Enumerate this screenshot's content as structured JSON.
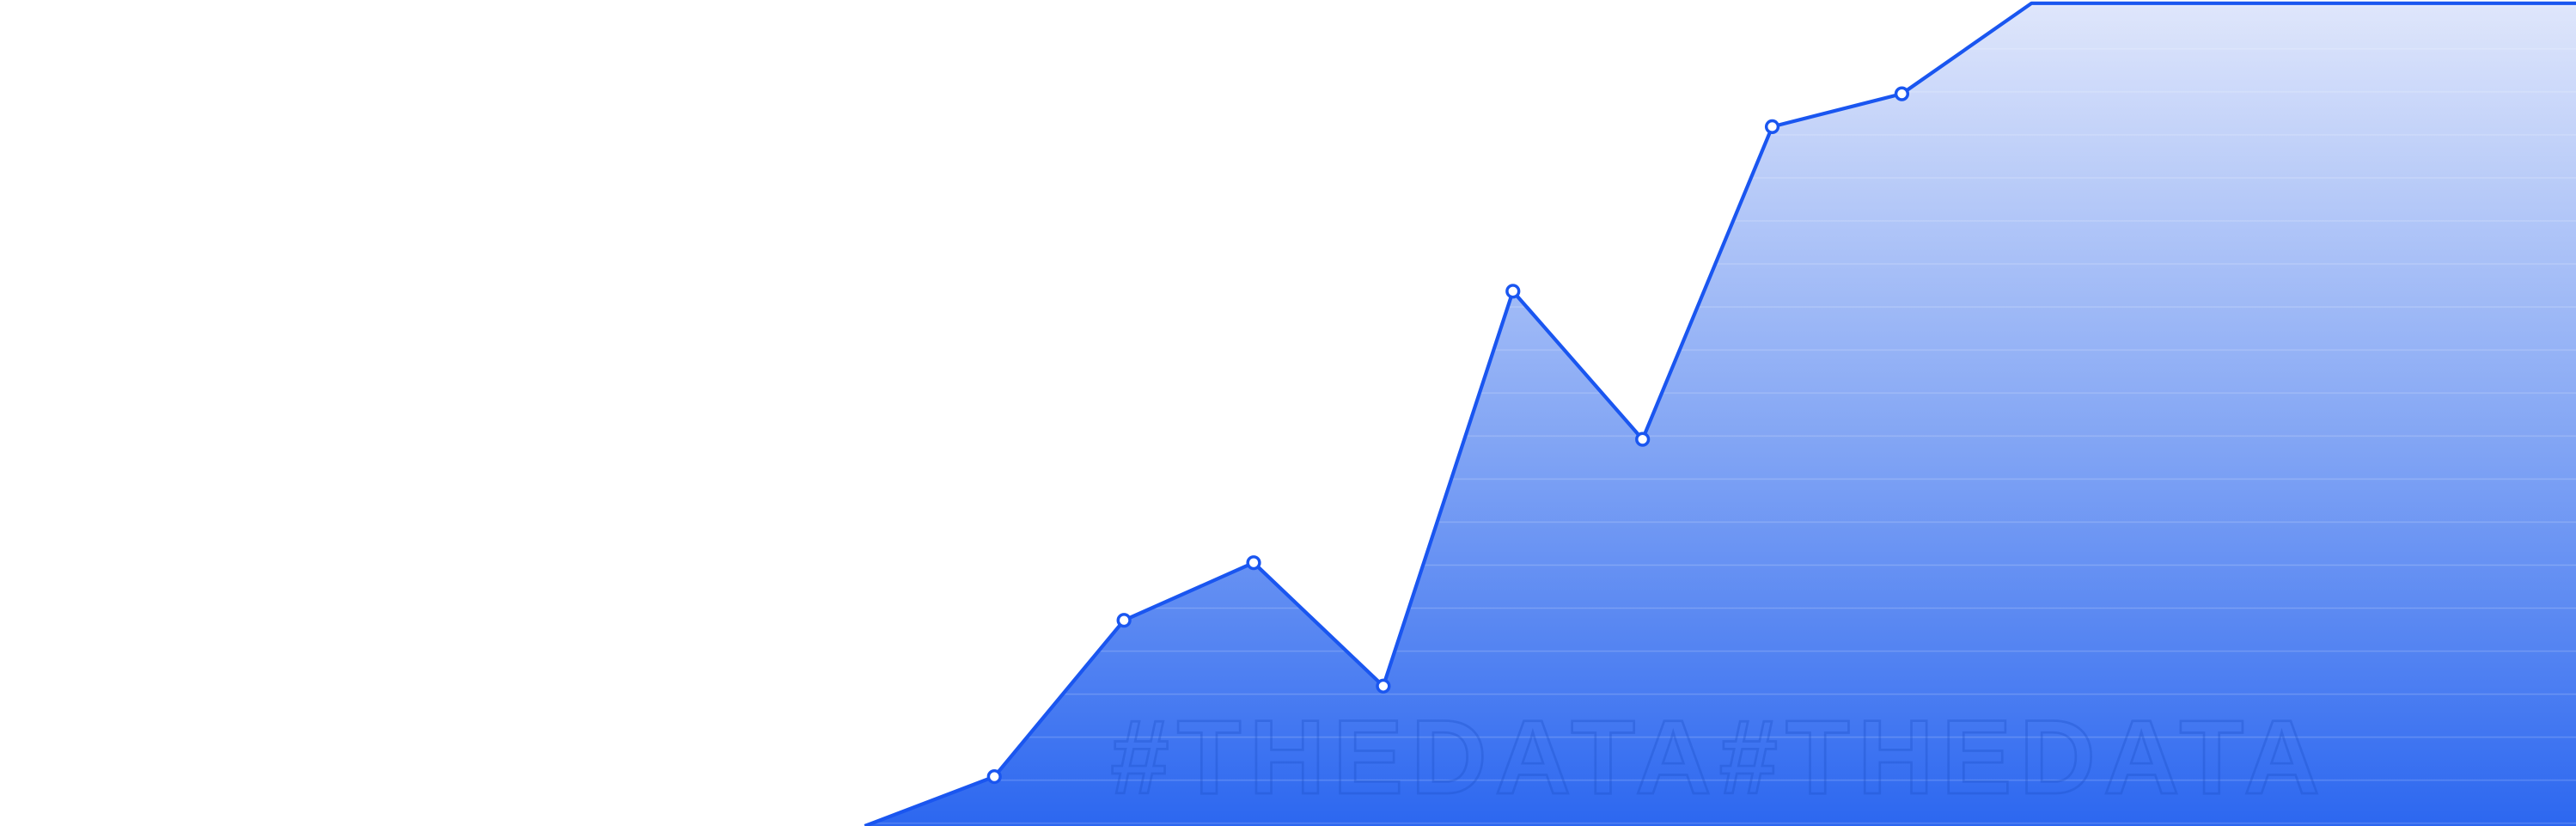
{
  "chart_data": {
    "type": "area",
    "watermark": "#THEDATA#THEDATA",
    "x": [
      0,
      1,
      2,
      3,
      4,
      5,
      6,
      7,
      8,
      9,
      13.2
    ],
    "series": [
      {
        "color": "#1a56f0",
        "values": [
          0,
          6,
          25,
          32,
          17,
          65,
          47,
          85,
          89,
          100,
          100
        ]
      }
    ],
    "xlim": [
      -6.67,
      13.2
    ],
    "ylim": [
      0,
      100
    ]
  }
}
